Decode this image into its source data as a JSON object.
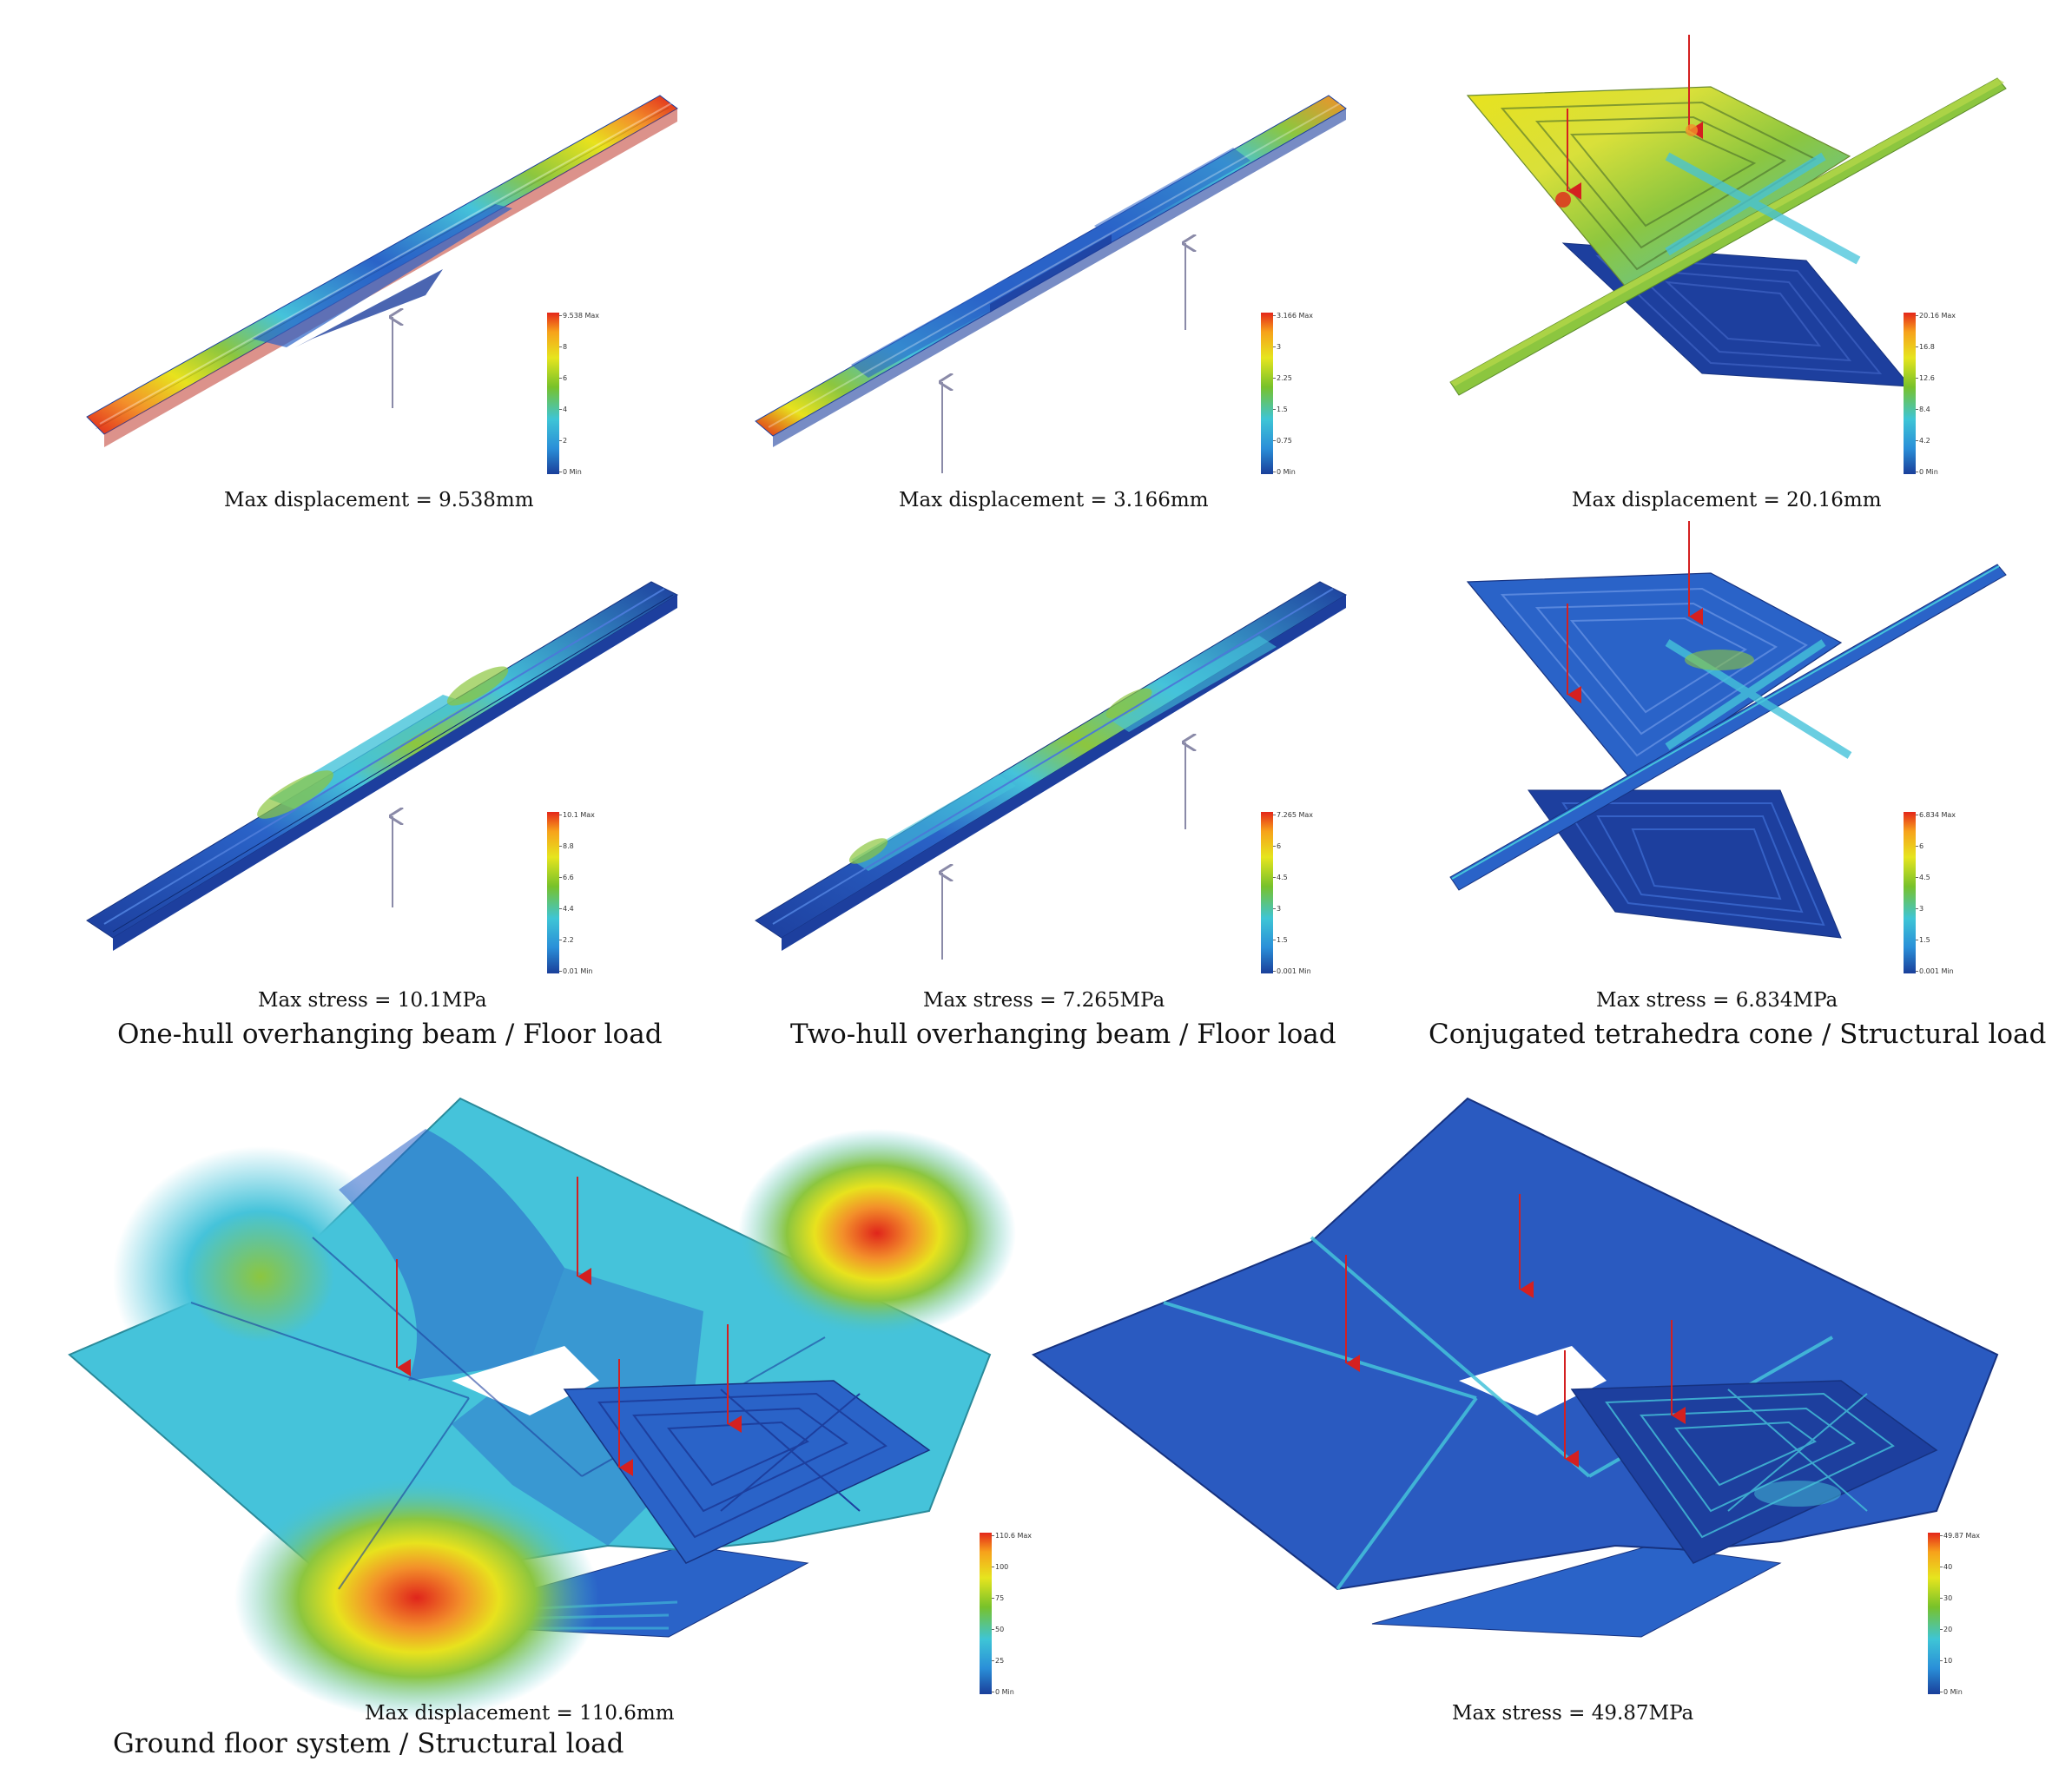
{
  "palette": {
    "deep_blue": "#1d3f9e",
    "blue": "#2a63c8",
    "cyan": "#45c3da",
    "green": "#8cc63f",
    "yellow": "#e8e21d",
    "orange": "#f3902a",
    "red": "#e0251b",
    "load_arrow_gray": "#8a8aa8",
    "load_arrow_red": "#d42020"
  },
  "panels": [
    {
      "id": "one-hull-displacement",
      "caption": "Max displacement = 9.538mm",
      "legend": {
        "ticks": [
          "9.538 Max",
          "8",
          "6",
          "4",
          "2",
          "0 Min"
        ]
      }
    },
    {
      "id": "two-hull-displacement",
      "caption": "Max displacement = 3.166mm",
      "legend": {
        "ticks": [
          "3.166 Max",
          "3",
          "2.25",
          "1.5",
          "0.75",
          "0 Min"
        ]
      }
    },
    {
      "id": "cone-displacement",
      "caption": "Max displacement = 20.16mm",
      "legend": {
        "ticks": [
          "20.16 Max",
          "16.8",
          "12.6",
          "8.4",
          "4.2",
          "0 Min"
        ]
      }
    },
    {
      "id": "one-hull-stress",
      "caption": "Max stress = 10.1MPa",
      "title": "One-hull overhanging beam / Floor load",
      "legend": {
        "ticks": [
          "10.1 Max",
          "8.8",
          "6.6",
          "4.4",
          "2.2",
          "0.01 Min"
        ]
      }
    },
    {
      "id": "two-hull-stress",
      "caption": "Max stress = 7.265MPa",
      "title": "Two-hull overhanging beam / Floor load",
      "legend": {
        "ticks": [
          "7.265 Max",
          "6",
          "4.5",
          "3",
          "1.5",
          "0.001 Min"
        ]
      }
    },
    {
      "id": "cone-stress",
      "caption": "Max stress = 6.834MPa",
      "title": "Conjugated tetrahedra cone / Structural load",
      "legend": {
        "ticks": [
          "6.834 Max",
          "6",
          "4.5",
          "3",
          "1.5",
          "0.001 Min"
        ]
      }
    },
    {
      "id": "ground-floor-displacement",
      "caption": "Max displacement = 110.6mm",
      "title": "Ground floor system / Structural load",
      "legend": {
        "ticks": [
          "110.6 Max",
          "100",
          "75",
          "50",
          "25",
          "0 Min"
        ]
      }
    },
    {
      "id": "ground-floor-stress",
      "caption": "Max stress = 49.87MPa",
      "legend": {
        "ticks": [
          "49.87 Max",
          "40",
          "30",
          "20",
          "10",
          "0 Min"
        ]
      }
    }
  ]
}
